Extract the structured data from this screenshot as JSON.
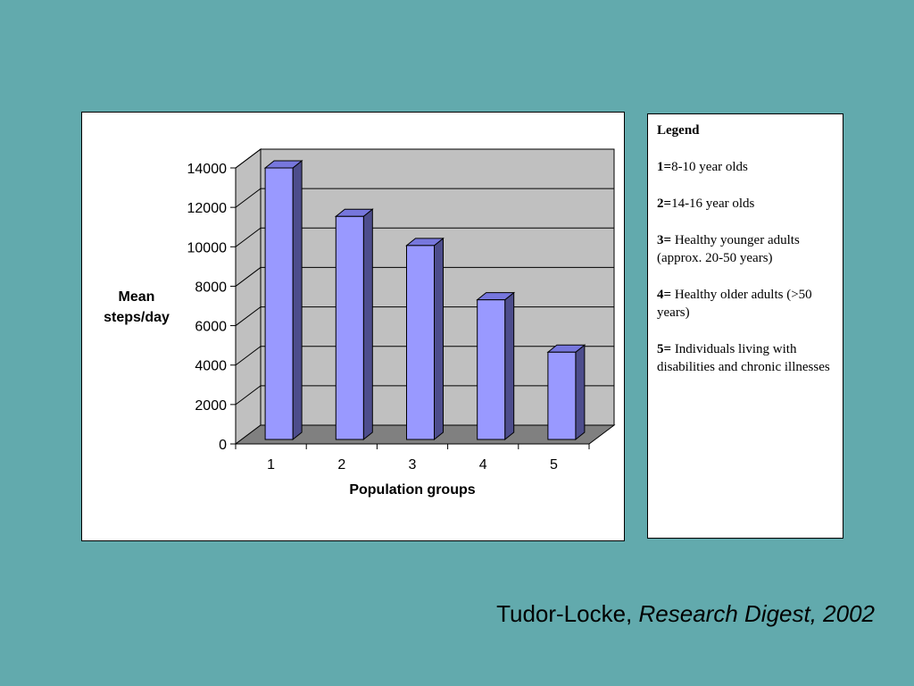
{
  "chart_data": {
    "type": "bar",
    "categories": [
      "1",
      "2",
      "3",
      "4",
      "5"
    ],
    "values": [
      14000,
      11500,
      10000,
      7200,
      4500
    ],
    "xlabel": "Population groups",
    "ylabel_lines": [
      "Mean",
      "steps/day"
    ],
    "ylim": [
      0,
      14000
    ],
    "yticks": [
      "0",
      "2000",
      "4000",
      "6000",
      "8000",
      "10000",
      "12000",
      "14000"
    ],
    "style": "3d-column",
    "grid": true,
    "colors": {
      "bar_front": "#9999ff",
      "bar_side": "#4d4d8c",
      "bar_top": "#7777dd",
      "back_wall": "#c0c0c0",
      "floor": "#808080"
    }
  },
  "legend": {
    "title": "Legend",
    "entries": [
      {
        "num": "1=",
        "text": "8-10 year olds"
      },
      {
        "num": "2=",
        "text": "14-16 year olds"
      },
      {
        "num": "3=",
        "text": " Healthy younger adults (approx. 20-50 years)"
      },
      {
        "num": "4=",
        "text": " Healthy older adults (>50 years)"
      },
      {
        "num": "5=",
        "text": " Individuals living with disabilities and chronic illnesses"
      }
    ]
  },
  "citation": {
    "author": "Tudor-Locke,",
    "source": "Research Digest, 2002"
  }
}
